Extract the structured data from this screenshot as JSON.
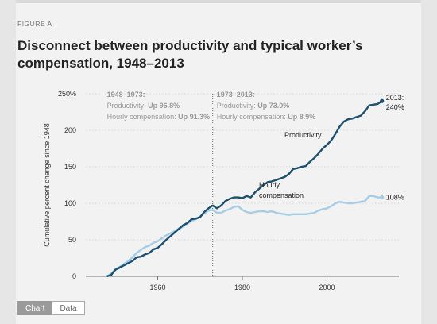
{
  "figure_label": "FIGURE A",
  "title": "Disconnect between productivity and typical worker’s compensation, 1948–2013",
  "tabs": [
    {
      "label": "Chart",
      "active": true
    },
    {
      "label": "Data",
      "active": false
    }
  ],
  "colors": {
    "productivity": "#1d4f6e",
    "compensation": "#a7cde6",
    "grid": "#cfcfcf",
    "annotation_text": "#9a9a9a",
    "axis_text": "#333333"
  },
  "chart_data": {
    "type": "line",
    "title": "Disconnect between productivity and typical worker’s compensation, 1948–2013",
    "xlabel": "",
    "ylabel": "Cumulative percent change since 1948",
    "xlim": [
      1943,
      2017
    ],
    "ylim": [
      0,
      250
    ],
    "grid": true,
    "y_ticks": [
      {
        "value": 0,
        "label": "0"
      },
      {
        "value": 50,
        "label": "50"
      },
      {
        "value": 100,
        "label": "100"
      },
      {
        "value": 150,
        "label": "150"
      },
      {
        "value": 200,
        "label": "200"
      },
      {
        "value": 250,
        "label": "250%"
      }
    ],
    "x_ticks": [
      {
        "value": 1960,
        "label": "1960"
      },
      {
        "value": 1980,
        "label": "1980"
      },
      {
        "value": 2000,
        "label": "2000"
      }
    ],
    "divider_year": 1973,
    "periods": [
      {
        "heading": "1948–1973:",
        "productivity_label": "Productivity: ",
        "productivity_value": "Up 96.8%",
        "comp_label": "Hourly compensation: ",
        "comp_value": "Up 91.3%"
      },
      {
        "heading": "1973–2013:",
        "productivity_label": "Productivity: ",
        "productivity_value": "Up 73.0%",
        "comp_label": "Hourly compensation: ",
        "comp_value": "Up 8.9%"
      }
    ],
    "series": [
      {
        "name": "Productivity",
        "label_lines": [
          "Productivity"
        ],
        "color_key": "productivity",
        "x": [
          1948,
          1949,
          1950,
          1951,
          1952,
          1953,
          1954,
          1955,
          1956,
          1957,
          1958,
          1959,
          1960,
          1961,
          1962,
          1963,
          1964,
          1965,
          1966,
          1967,
          1968,
          1969,
          1970,
          1971,
          1972,
          1973,
          1974,
          1975,
          1976,
          1977,
          1978,
          1979,
          1980,
          1981,
          1982,
          1983,
          1984,
          1985,
          1986,
          1987,
          1988,
          1989,
          1990,
          1991,
          1992,
          1993,
          1994,
          1995,
          1996,
          1997,
          1998,
          1999,
          2000,
          2001,
          2002,
          2003,
          2004,
          2005,
          2006,
          2007,
          2008,
          2009,
          2010,
          2011,
          2012,
          2013
        ],
        "values": [
          0,
          2,
          9,
          12,
          15,
          18,
          21,
          26,
          27,
          30,
          32,
          37,
          39,
          44,
          50,
          55,
          60,
          65,
          70,
          73,
          78,
          79,
          81,
          88,
          93,
          97,
          93,
          97,
          103,
          106,
          108,
          108,
          107,
          110,
          108,
          115,
          120,
          125,
          129,
          130,
          132,
          134,
          136,
          140,
          147,
          148,
          150,
          151,
          157,
          162,
          168,
          175,
          180,
          186,
          195,
          205,
          212,
          215,
          216,
          218,
          220,
          226,
          234,
          235,
          236,
          240
        ]
      },
      {
        "name": "Hourly compensation",
        "label_lines": [
          "Hourly",
          "compensation"
        ],
        "color_key": "compensation",
        "x": [
          1948,
          1949,
          1950,
          1951,
          1952,
          1953,
          1954,
          1955,
          1956,
          1957,
          1958,
          1959,
          1960,
          1961,
          1962,
          1963,
          1964,
          1965,
          1966,
          1967,
          1968,
          1969,
          1970,
          1971,
          1972,
          1973,
          1974,
          1975,
          1976,
          1977,
          1978,
          1979,
          1980,
          1981,
          1982,
          1983,
          1984,
          1985,
          1986,
          1987,
          1988,
          1989,
          1990,
          1991,
          1992,
          1993,
          1994,
          1995,
          1996,
          1997,
          1998,
          1999,
          2000,
          2001,
          2002,
          2003,
          2004,
          2005,
          2006,
          2007,
          2008,
          2009,
          2010,
          2011,
          2012,
          2013
        ],
        "values": [
          0,
          4,
          10,
          13,
          17,
          21,
          26,
          32,
          36,
          40,
          42,
          46,
          48,
          52,
          56,
          59,
          62,
          65,
          68,
          72,
          76,
          78,
          82,
          86,
          90,
          91,
          87,
          87,
          90,
          92,
          95,
          96,
          91,
          88,
          87,
          88,
          89,
          89,
          88,
          89,
          87,
          86,
          85,
          84,
          85,
          85,
          85,
          85,
          86,
          87,
          90,
          92,
          93,
          96,
          100,
          102,
          101,
          100,
          100,
          101,
          102,
          103,
          110,
          110,
          108,
          108
        ]
      }
    ],
    "end_labels": [
      {
        "series": 0,
        "lines": [
          "2013:",
          "240%"
        ]
      },
      {
        "series": 1,
        "lines": [
          "108%"
        ]
      }
    ]
  }
}
